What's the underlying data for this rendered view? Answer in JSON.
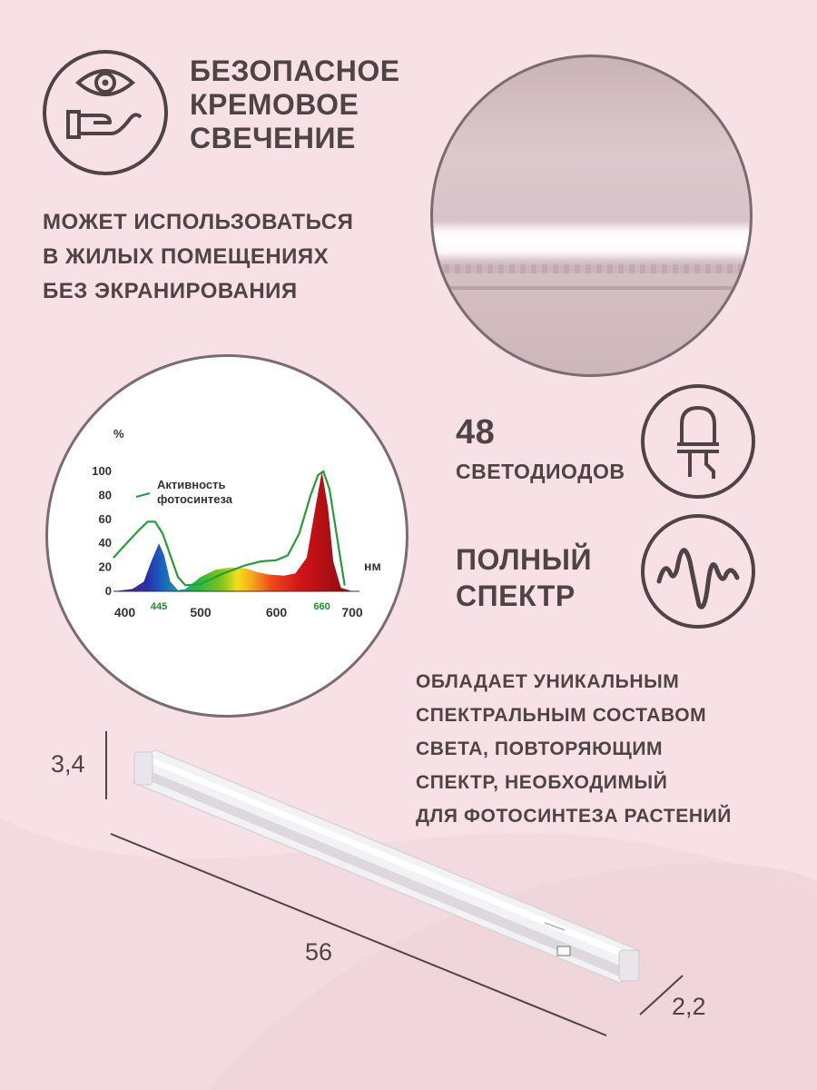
{
  "features": {
    "safe_glow": {
      "icon": "eye-hand-icon",
      "lines": [
        "БЕЗОПАСНОЕ",
        "КРЕМОВОЕ",
        "СВЕЧЕНИЕ"
      ]
    },
    "residential": {
      "lines": [
        "МОЖЕТ ИСПОЛЬЗОВАТЬСЯ",
        "В ЖИЛЫХ ПОМЕЩЕНИЯХ",
        "БЕЗ ЭКРАНИРОВАНИЯ"
      ]
    },
    "leds": {
      "icon": "led-icon",
      "count": "48",
      "label": "СВЕТОДИОДОВ"
    },
    "full_spectrum": {
      "icon": "wave-icon",
      "lines": [
        "ПОЛНЫЙ",
        "СПЕКТР"
      ]
    },
    "description": {
      "lines": [
        "ОБЛАДАЕТ УНИКАЛЬНЫМ",
        "СПЕКТРАЛЬНЫМ СОСТАВОМ",
        "СВЕТА, ПОВТОРЯЮЩИМ",
        "СПЕКТР, НЕОБХОДИМЫЙ",
        "ДЛЯ ФОТОСИНТЕЗА РАСТЕНИЙ"
      ]
    }
  },
  "dimensions": {
    "height": "3,4",
    "length": "56",
    "depth": "2,2"
  },
  "chart_data": {
    "type": "area",
    "ylabel": "%",
    "xlabel": "нм",
    "x_ticks": [
      "400",
      "500",
      "600",
      "700"
    ],
    "y_ticks": [
      "0",
      "20",
      "40",
      "60",
      "80",
      "100"
    ],
    "xlim": [
      385,
      700
    ],
    "ylim": [
      0,
      100
    ],
    "peak_labels": [
      "445",
      "660"
    ],
    "legend": [
      "Активность",
      "фотосинтеза"
    ],
    "series": [
      {
        "name": "",
        "values_x": [
          385,
          410,
          425,
          435,
          445,
          452,
          460,
          470,
          480,
          500,
          520,
          540,
          560,
          575,
          590,
          610,
          625,
          640,
          650,
          660,
          668,
          675,
          685,
          700
        ],
        "values_y": [
          0,
          2,
          8,
          25,
          40,
          30,
          8,
          1,
          2,
          12,
          18,
          20,
          19,
          16,
          14,
          13,
          15,
          28,
          65,
          100,
          70,
          25,
          3,
          0
        ]
      },
      {
        "name": "фотосинтеза",
        "values_x": [
          385,
          405,
          420,
          430,
          440,
          450,
          460,
          470,
          480,
          500,
          530,
          560,
          580,
          600,
          615,
          630,
          645,
          655,
          662,
          670,
          680,
          690
        ],
        "values_y": [
          28,
          42,
          52,
          58,
          58,
          48,
          30,
          12,
          5,
          6,
          15,
          22,
          25,
          26,
          30,
          48,
          80,
          97,
          100,
          85,
          45,
          5
        ]
      }
    ],
    "colors": {
      "activity_line": "#2a9b3a",
      "peak_label": "#1f8b2b"
    }
  },
  "colors": {
    "background": "#f7e1e6",
    "text": "#4e4446"
  }
}
